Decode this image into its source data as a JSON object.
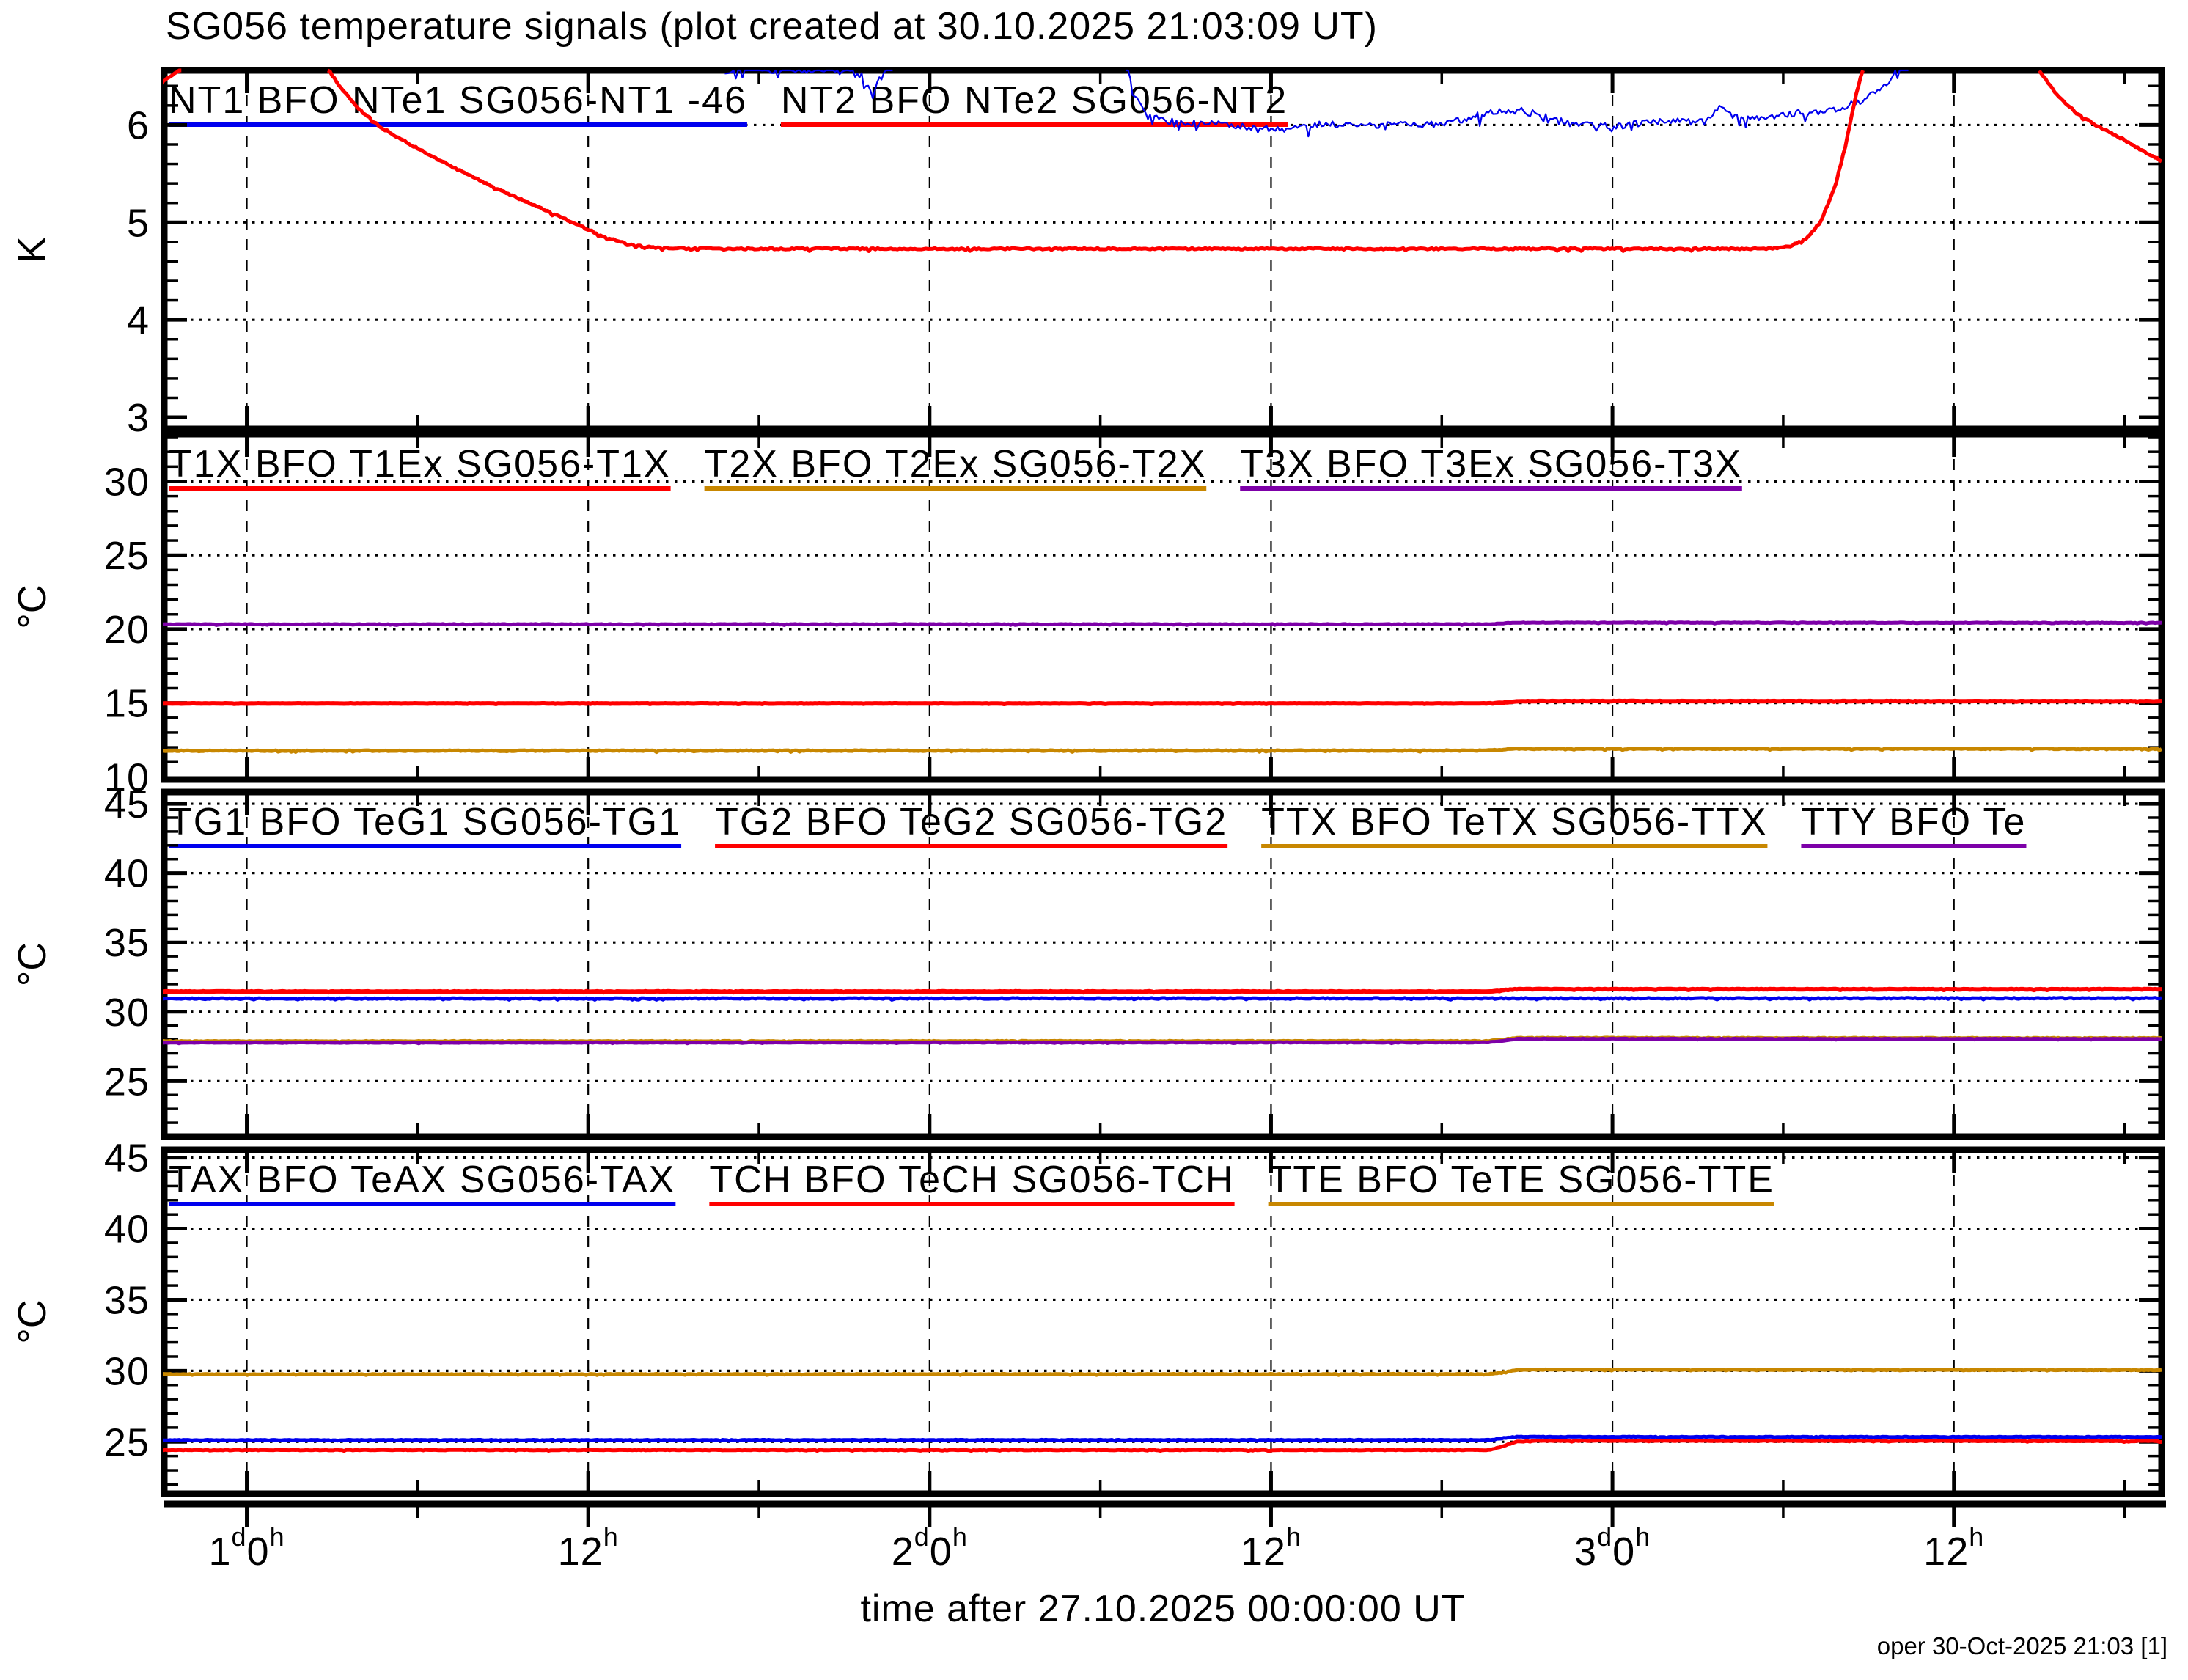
{
  "title": "SG056 temperature signals (plot created at 30.10.2025 21:03:09 UT)",
  "xlabel": "time after 27.10.2025 00:00:00 UT",
  "footer": {
    "credit": "oper 30-Oct-2025 21:03 [1]"
  },
  "colors": {
    "blue": "#0000ee",
    "red": "#ff0000",
    "orange": "#c88700",
    "purple": "#7d00a8",
    "frame": "#000000",
    "background": "#ffffff"
  },
  "x_axis": {
    "range_hours": [
      21.1,
      91.3
    ],
    "major_ticks": [
      {
        "t": 24,
        "label": "1d0h"
      },
      {
        "t": 36,
        "label": "12h"
      },
      {
        "t": 48,
        "label": "2d0h"
      },
      {
        "t": 60,
        "label": "12h"
      },
      {
        "t": 72,
        "label": "3d0h"
      },
      {
        "t": 84,
        "label": "12h"
      }
    ],
    "minor_ticks": [
      30,
      42,
      54,
      66,
      78,
      90
    ]
  },
  "chart_data": [
    {
      "type": "line",
      "name": "helium-levels",
      "ylabel": "K",
      "ylim": [
        2.88,
        6.56
      ],
      "yticks": [
        3,
        4,
        5,
        6
      ],
      "minor_step": 0.2,
      "legend": [
        {
          "label": "NT1 BFO NTe1 SG056-NT1 -46",
          "color": "blue"
        },
        {
          "label": "NT2 BFO NTe2 SG056-NT2",
          "color": "red"
        }
      ],
      "series": [
        {
          "name": "NT1",
          "color": "blue",
          "noise": 0.035,
          "width": 2.2,
          "segments": [
            [
              [
                40.8,
                6.56
              ],
              [
                41.6,
                6.59
              ],
              [
                42.4,
                6.56
              ],
              [
                43.2,
                6.58
              ],
              [
                44.0,
                6.56
              ],
              [
                44.8,
                6.58
              ],
              [
                45.5,
                6.56
              ],
              [
                46.0,
                6.3
              ],
              [
                46.3,
                6.52
              ],
              [
                46.7,
                6.62
              ]
            ],
            [
              [
                54.9,
                6.6
              ],
              [
                55.4,
                6.2
              ],
              [
                55.9,
                6.07
              ],
              [
                56.6,
                6.03
              ],
              [
                57.5,
                6.01
              ],
              [
                58.5,
                6.0
              ],
              [
                59.3,
                5.97
              ],
              [
                60.2,
                5.955
              ],
              [
                61.0,
                5.975
              ],
              [
                61.8,
                6.01
              ],
              [
                62.8,
                6.02
              ],
              [
                63.8,
                6.0
              ],
              [
                64.8,
                6.02
              ],
              [
                65.6,
                6.0
              ],
              [
                66.4,
                6.03
              ],
              [
                67.2,
                6.09
              ],
              [
                68.0,
                6.14
              ],
              [
                68.7,
                6.15
              ],
              [
                69.4,
                6.11
              ],
              [
                70.1,
                6.04
              ],
              [
                70.9,
                6.0
              ],
              [
                71.7,
                5.985
              ],
              [
                72.5,
                6.0
              ],
              [
                73.3,
                6.03
              ],
              [
                74.1,
                6.05
              ],
              [
                74.8,
                6.03
              ],
              [
                75.4,
                6.09
              ],
              [
                75.8,
                6.18
              ],
              [
                76.2,
                6.1
              ],
              [
                76.8,
                6.06
              ],
              [
                77.5,
                6.09
              ],
              [
                78.3,
                6.12
              ],
              [
                79.0,
                6.13
              ],
              [
                79.7,
                6.16
              ],
              [
                80.3,
                6.2
              ],
              [
                80.9,
                6.27
              ],
              [
                81.3,
                6.35
              ],
              [
                81.7,
                6.45
              ],
              [
                82.0,
                6.56
              ],
              [
                82.4,
                6.6
              ]
            ]
          ]
        },
        {
          "name": "NT2",
          "color": "red",
          "noise": 0.008,
          "width": 5,
          "segments": [
            [
              [
                21.0,
                6.43
              ],
              [
                21.7,
                6.58
              ]
            ],
            [
              [
                26.85,
                6.58
              ],
              [
                27.3,
                6.38
              ],
              [
                27.9,
                6.18
              ],
              [
                28.6,
                6.0
              ],
              [
                29.5,
                5.84
              ],
              [
                30.5,
                5.68
              ],
              [
                31.7,
                5.5
              ],
              [
                33.0,
                5.32
              ],
              [
                34.3,
                5.15
              ],
              [
                35.6,
                4.98
              ],
              [
                36.6,
                4.85
              ],
              [
                37.5,
                4.77
              ],
              [
                38.6,
                4.735
              ],
              [
                40.0,
                4.73
              ],
              [
                77.3,
                4.73
              ],
              [
                78.2,
                4.75
              ],
              [
                78.8,
                4.83
              ],
              [
                79.3,
                5.0
              ],
              [
                79.8,
                5.35
              ],
              [
                80.2,
                5.8
              ],
              [
                80.55,
                6.3
              ],
              [
                80.8,
                6.58
              ]
            ],
            [
              [
                87.0,
                6.56
              ],
              [
                87.6,
                6.32
              ],
              [
                88.3,
                6.12
              ],
              [
                89.1,
                5.98
              ],
              [
                89.9,
                5.86
              ],
              [
                90.6,
                5.74
              ],
              [
                91.3,
                5.63
              ]
            ]
          ]
        }
      ]
    },
    {
      "type": "line",
      "name": "sensor-temperatures-x",
      "ylabel": "°C",
      "ylim": [
        9.82,
        33.2
      ],
      "yticks": [
        10,
        15,
        20,
        25,
        30
      ],
      "minor_step": 1,
      "legend": [
        {
          "label": "T1X BFO T1Ex SG056-T1X",
          "color": "red"
        },
        {
          "label": "T2X BFO T2Ex SG056-T2X",
          "color": "orange"
        },
        {
          "label": "T3X BFO T3Ex SG056-T3X",
          "color": "purple"
        }
      ],
      "series": [
        {
          "name": "T1X",
          "color": "red",
          "noise": 0.012,
          "width": 6,
          "segments": [
            [
              [
                21,
                14.97
              ],
              [
                67.6,
                14.97
              ],
              [
                68.0,
                15.0
              ],
              [
                68.6,
                15.1
              ],
              [
                69.2,
                15.13
              ],
              [
                91.3,
                15.12
              ]
            ]
          ]
        },
        {
          "name": "T2X",
          "color": "orange",
          "noise": 0.03,
          "width": 5,
          "segments": [
            [
              [
                21,
                11.77
              ],
              [
                67.6,
                11.78
              ],
              [
                68.6,
                11.9
              ],
              [
                91.3,
                11.9
              ]
            ]
          ]
        },
        {
          "name": "T3X",
          "color": "purple",
          "noise": 0.018,
          "width": 5,
          "segments": [
            [
              [
                21,
                20.33
              ],
              [
                67.6,
                20.33
              ],
              [
                68.6,
                20.44
              ],
              [
                91.3,
                20.43
              ]
            ]
          ]
        }
      ]
    },
    {
      "type": "line",
      "name": "gradient-and-table-temperatures",
      "ylabel": "°C",
      "ylim": [
        21.0,
        45.85
      ],
      "yticks": [
        25,
        30,
        35,
        40,
        45
      ],
      "minor_step": 1,
      "legend": [
        {
          "label": "TG1 BFO TeG1 SG056-TG1",
          "color": "blue"
        },
        {
          "label": "TG2 BFO TeG2 SG056-TG2",
          "color": "red"
        },
        {
          "label": "TTX BFO TeTX SG056-TTX",
          "color": "orange"
        },
        {
          "label": "TTY BFO Te",
          "color": "purple"
        }
      ],
      "series": [
        {
          "name": "TTX",
          "color": "orange",
          "noise": 0.025,
          "width": 5,
          "segments": [
            [
              [
                21,
                27.88
              ],
              [
                67.6,
                27.89
              ],
              [
                68.7,
                28.12
              ],
              [
                91.3,
                28.1
              ]
            ]
          ]
        },
        {
          "name": "TTY",
          "color": "purple",
          "noise": 0.018,
          "width": 5,
          "segments": [
            [
              [
                21,
                27.78
              ],
              [
                67.6,
                27.79
              ],
              [
                68.7,
                28.05
              ],
              [
                91.3,
                28.04
              ]
            ]
          ]
        },
        {
          "name": "TG1",
          "color": "blue",
          "noise": 0.03,
          "width": 5,
          "segments": [
            [
              [
                21,
                30.95
              ],
              [
                91.3,
                30.98
              ]
            ]
          ]
        },
        {
          "name": "TG2",
          "color": "red",
          "noise": 0.018,
          "width": 6,
          "segments": [
            [
              [
                21,
                31.46
              ],
              [
                67.6,
                31.46
              ],
              [
                68.6,
                31.63
              ],
              [
                91.3,
                31.62
              ]
            ]
          ]
        }
      ]
    },
    {
      "type": "line",
      "name": "auxiliary-temperatures",
      "ylabel": "°C",
      "ylim": [
        21.35,
        45.55
      ],
      "yticks": [
        25,
        30,
        35,
        40,
        45
      ],
      "minor_step": 1,
      "legend": [
        {
          "label": "TAX BFO TeAX SG056-TAX",
          "color": "blue"
        },
        {
          "label": "TCH BFO TeCH SG056-TCH",
          "color": "red"
        },
        {
          "label": "TTE BFO TeTE SG056-TTE",
          "color": "orange"
        }
      ],
      "series": [
        {
          "name": "TTE",
          "color": "orange",
          "noise": 0.022,
          "width": 5,
          "segments": [
            [
              [
                21,
                29.76
              ],
              [
                67.7,
                29.77
              ],
              [
                68.0,
                29.85
              ],
              [
                68.6,
                30.05
              ],
              [
                69.3,
                30.08
              ],
              [
                91.3,
                30.05
              ]
            ]
          ]
        },
        {
          "name": "TAX",
          "color": "blue",
          "noise": 0.02,
          "width": 5,
          "segments": [
            [
              [
                21,
                25.12
              ],
              [
                67.7,
                25.13
              ],
              [
                68.5,
                25.35
              ],
              [
                91.3,
                25.34
              ]
            ]
          ]
        },
        {
          "name": "TCH",
          "color": "red",
          "noise": 0.02,
          "width": 5,
          "segments": [
            [
              [
                21,
                24.42
              ],
              [
                67.7,
                24.42
              ],
              [
                68.0,
                24.6
              ],
              [
                68.6,
                25.0
              ],
              [
                69.3,
                25.07
              ],
              [
                91.3,
                25.05
              ]
            ]
          ]
        }
      ]
    }
  ]
}
